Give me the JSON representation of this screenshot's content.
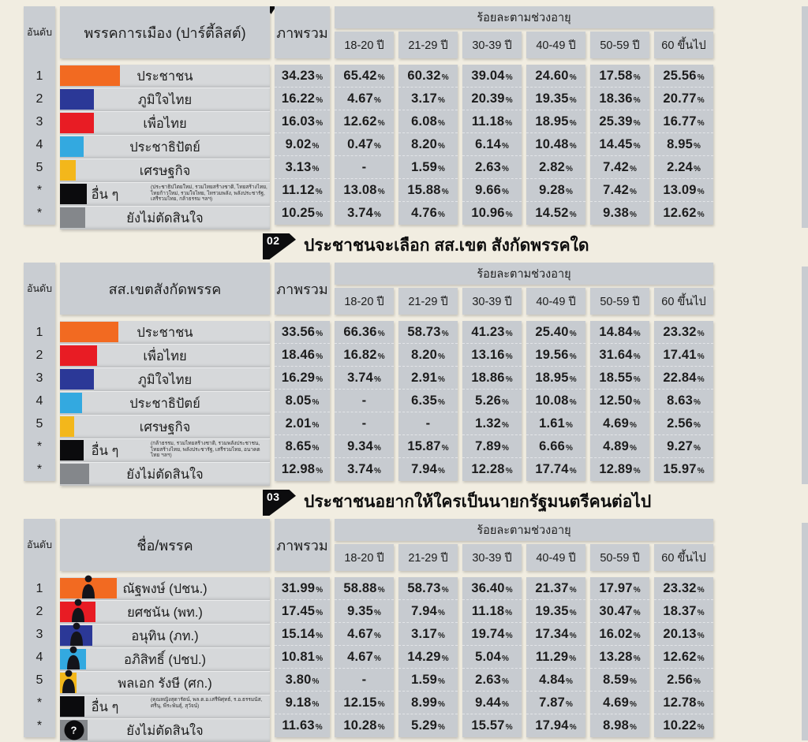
{
  "labels": {
    "rank_header": "อันดับ",
    "overall_header": "ภาพรวม",
    "age_group_label": "ร้อยละตามช่วงอายุ",
    "age_columns": [
      "18-20 ปี",
      "21-29 ปี",
      "30-39 ปี",
      "40-49 ปี",
      "50-59 ปี",
      "60 ขึ้นไป"
    ],
    "percent_sign": "%"
  },
  "tables": [
    {
      "badge": "",
      "title": "",
      "name_header": "พรรคการเมือง (ปาร์ตี้ลิสต์)",
      "rows": [
        {
          "rank": "1",
          "name": "ประชาชน",
          "color": "#f26a21",
          "overall": "34.23",
          "ages": [
            "65.42",
            "60.32",
            "39.04",
            "24.60",
            "17.58",
            "25.56"
          ]
        },
        {
          "rank": "2",
          "name": "ภูมิใจไทย",
          "color": "#2b3897",
          "overall": "16.22",
          "ages": [
            "4.67",
            "3.17",
            "20.39",
            "19.35",
            "18.36",
            "20.77"
          ]
        },
        {
          "rank": "3",
          "name": "เพื่อไทย",
          "color": "#e81c24",
          "overall": "16.03",
          "ages": [
            "12.62",
            "6.08",
            "11.18",
            "18.95",
            "25.39",
            "16.77"
          ]
        },
        {
          "rank": "4",
          "name": "ประชาธิปัตย์",
          "color": "#33a9e0",
          "overall": "9.02",
          "ages": [
            "0.47",
            "8.20",
            "6.14",
            "10.48",
            "14.45",
            "8.95"
          ]
        },
        {
          "rank": "5",
          "name": "เศรษฐกิจ",
          "color": "#f3b71b",
          "overall": "3.13",
          "ages": [
            "-",
            "1.59",
            "2.63",
            "2.82",
            "7.42",
            "2.24"
          ]
        },
        {
          "rank": "*",
          "name": "อื่น ๆ",
          "color": "#0b0b0d",
          "overall": "11.12",
          "note": "(ประชาธิปไตยใหม่, รวมไทยสร้างชาติ, ไทยสร้างไทย, ไทยก้าวใหม่, รวมใจไทย, ไทรวมพลัง, พลังประชารัฐ, เสรีรวมไทย, กล้าธรรม ฯลฯ)",
          "ages": [
            "13.08",
            "15.88",
            "9.66",
            "9.28",
            "7.42",
            "13.09"
          ]
        },
        {
          "rank": "*",
          "name": "ยังไม่ตัดสินใจ",
          "color": "#84878b",
          "overall": "10.25",
          "ages": [
            "3.74",
            "4.76",
            "10.96",
            "14.52",
            "9.38",
            "12.62"
          ]
        }
      ]
    },
    {
      "badge": "02",
      "title": "ประชาชนจะเลือก สส.เขต สังกัดพรรคใด",
      "name_header": "สส.เขตสังกัดพรรค",
      "rows": [
        {
          "rank": "1",
          "name": "ประชาชน",
          "color": "#f26a21",
          "overall": "33.56",
          "ages": [
            "66.36",
            "58.73",
            "41.23",
            "25.40",
            "14.84",
            "23.32"
          ]
        },
        {
          "rank": "2",
          "name": "เพื่อไทย",
          "color": "#e81c24",
          "overall": "18.46",
          "ages": [
            "16.82",
            "8.20",
            "13.16",
            "19.56",
            "31.64",
            "17.41"
          ]
        },
        {
          "rank": "3",
          "name": "ภูมิใจไทย",
          "color": "#2b3897",
          "overall": "16.29",
          "ages": [
            "3.74",
            "2.91",
            "18.86",
            "18.95",
            "18.55",
            "22.84"
          ]
        },
        {
          "rank": "4",
          "name": "ประชาธิปัตย์",
          "color": "#33a9e0",
          "overall": "8.05",
          "ages": [
            "-",
            "6.35",
            "5.26",
            "10.08",
            "12.50",
            "8.63"
          ]
        },
        {
          "rank": "5",
          "name": "เศรษฐกิจ",
          "color": "#f3b71b",
          "overall": "2.01",
          "ages": [
            "-",
            "-",
            "1.32",
            "1.61",
            "4.69",
            "2.56"
          ]
        },
        {
          "rank": "*",
          "name": "อื่น ๆ",
          "color": "#0b0b0d",
          "overall": "8.65",
          "note": "(กล้าธรรม, รวมไทยสร้างชาติ, รวมพลังประชาชน, ไทยสร้างไทย, พลังประชารัฐ, เสรีรวมไทย, อนาคตไทย ฯลฯ)",
          "ages": [
            "9.34",
            "15.87",
            "7.89",
            "6.66",
            "4.89",
            "9.27"
          ]
        },
        {
          "rank": "*",
          "name": "ยังไม่ตัดสินใจ",
          "color": "#84878b",
          "overall": "12.98",
          "ages": [
            "3.74",
            "7.94",
            "12.28",
            "17.74",
            "12.89",
            "15.97"
          ]
        }
      ]
    },
    {
      "badge": "03",
      "title": "ประชาชนอยากให้ใครเป็นนายกรัฐมนตรีคนต่อไป",
      "name_header": "ชื่อ/พรรค",
      "rows": [
        {
          "rank": "1",
          "name": "ณัฐพงษ์ (ปชน.)",
          "color": "#f26a21",
          "icon": "person",
          "overall": "31.99",
          "ages": [
            "58.88",
            "58.73",
            "36.40",
            "21.37",
            "17.97",
            "23.32"
          ]
        },
        {
          "rank": "2",
          "name": "ยศชนัน (พท.)",
          "color": "#e81c24",
          "icon": "person",
          "overall": "17.45",
          "ages": [
            "9.35",
            "7.94",
            "11.18",
            "19.35",
            "30.47",
            "18.37"
          ]
        },
        {
          "rank": "3",
          "name": "อนุทิน (ภท.)",
          "color": "#2b3897",
          "icon": "person",
          "overall": "15.14",
          "ages": [
            "4.67",
            "3.17",
            "19.74",
            "17.34",
            "16.02",
            "20.13"
          ]
        },
        {
          "rank": "4",
          "name": "อภิสิทธิ์ (ปชป.)",
          "color": "#33a9e0",
          "icon": "person",
          "overall": "10.81",
          "ages": [
            "4.67",
            "14.29",
            "5.04",
            "11.29",
            "13.28",
            "12.62"
          ]
        },
        {
          "rank": "5",
          "name": "พลเอก รังษี (ศก.)",
          "color": "#f3b71b",
          "icon": "person",
          "overall": "3.80",
          "ages": [
            "-",
            "1.59",
            "2.63",
            "4.84",
            "8.59",
            "2.56"
          ]
        },
        {
          "rank": "*",
          "name": "อื่น ๆ",
          "color": "#0b0b0d",
          "overall": "9.18",
          "note": "(คุณหญิงสุดารัตน์, พล.ต.อ.เสรีพิศุทธ์, ร.อ.ธรรมนัส, ศรีนุ, พีระพันธุ์, สุวัจน์)",
          "ages": [
            "12.15",
            "8.99",
            "9.44",
            "7.87",
            "4.69",
            "12.78"
          ]
        },
        {
          "rank": "*",
          "name": "ยังไม่ตัดสินใจ",
          "color": "#84878b",
          "icon": "question",
          "overall": "11.63",
          "ages": [
            "10.28",
            "5.29",
            "15.57",
            "17.94",
            "8.98",
            "10.22"
          ]
        }
      ]
    }
  ],
  "icons": {
    "question_mark": "?"
  }
}
